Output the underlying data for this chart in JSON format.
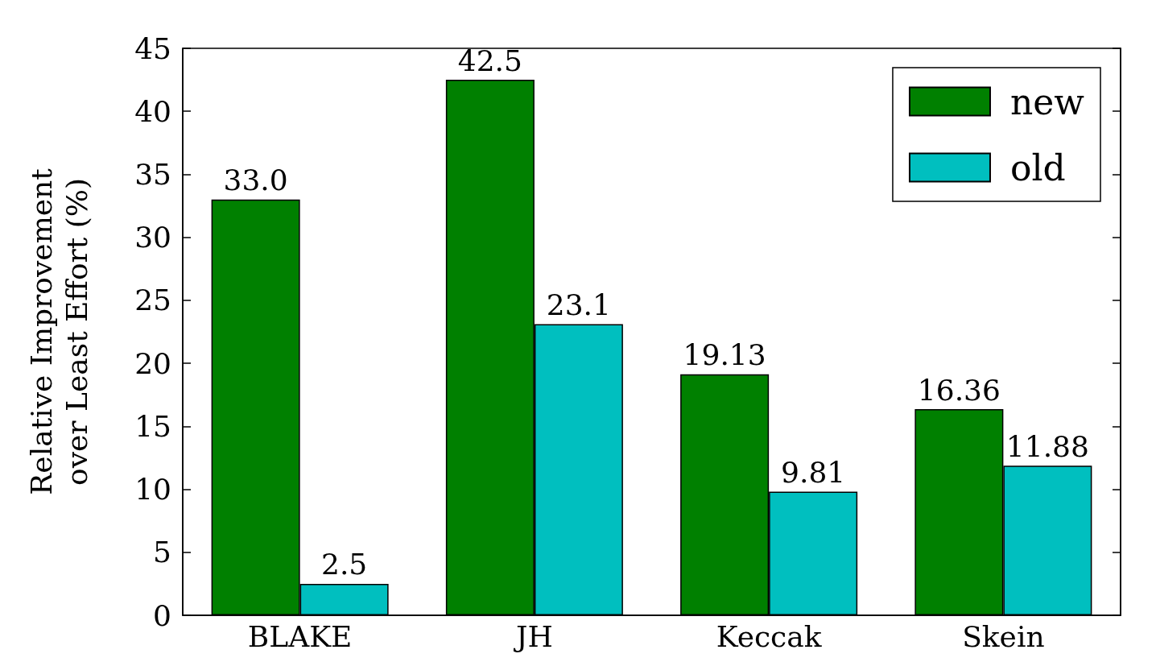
{
  "chart_data": {
    "type": "bar",
    "ylabel": "Relative Improvement\nover Least Effort (%)",
    "categories": [
      "BLAKE",
      "JH",
      "Keccak",
      "Skein"
    ],
    "series": [
      {
        "name": "new",
        "color": "#008000",
        "values": [
          33.0,
          42.5,
          19.13,
          16.36
        ],
        "value_labels": [
          "33.0",
          "42.5",
          "19.13",
          "16.36"
        ]
      },
      {
        "name": "old",
        "color": "#00bfbf",
        "values": [
          2.5,
          23.1,
          9.81,
          11.88
        ],
        "value_labels": [
          "2.5",
          "23.1",
          "9.81",
          "11.88"
        ]
      }
    ],
    "ylim": [
      0,
      45
    ],
    "yticks": [
      0,
      5,
      10,
      15,
      20,
      25,
      30,
      35,
      40,
      45
    ],
    "grid": false,
    "legend": "top right"
  }
}
